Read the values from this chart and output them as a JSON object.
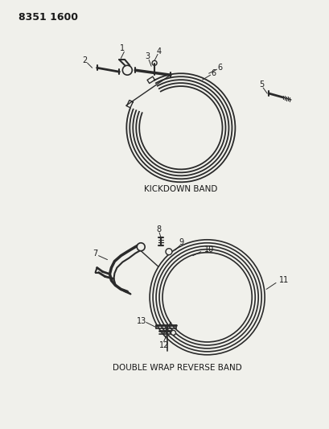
{
  "title_code": "8351 1600",
  "background_color": "#f0f0eb",
  "line_color": "#2a2a2a",
  "label_color": "#1a1a1a",
  "kickdown_label": "KICKDOWN BAND",
  "reverse_label": "DOUBLE WRAP REVERSE BAND",
  "fig_width": 4.1,
  "fig_height": 5.33,
  "dpi": 100
}
